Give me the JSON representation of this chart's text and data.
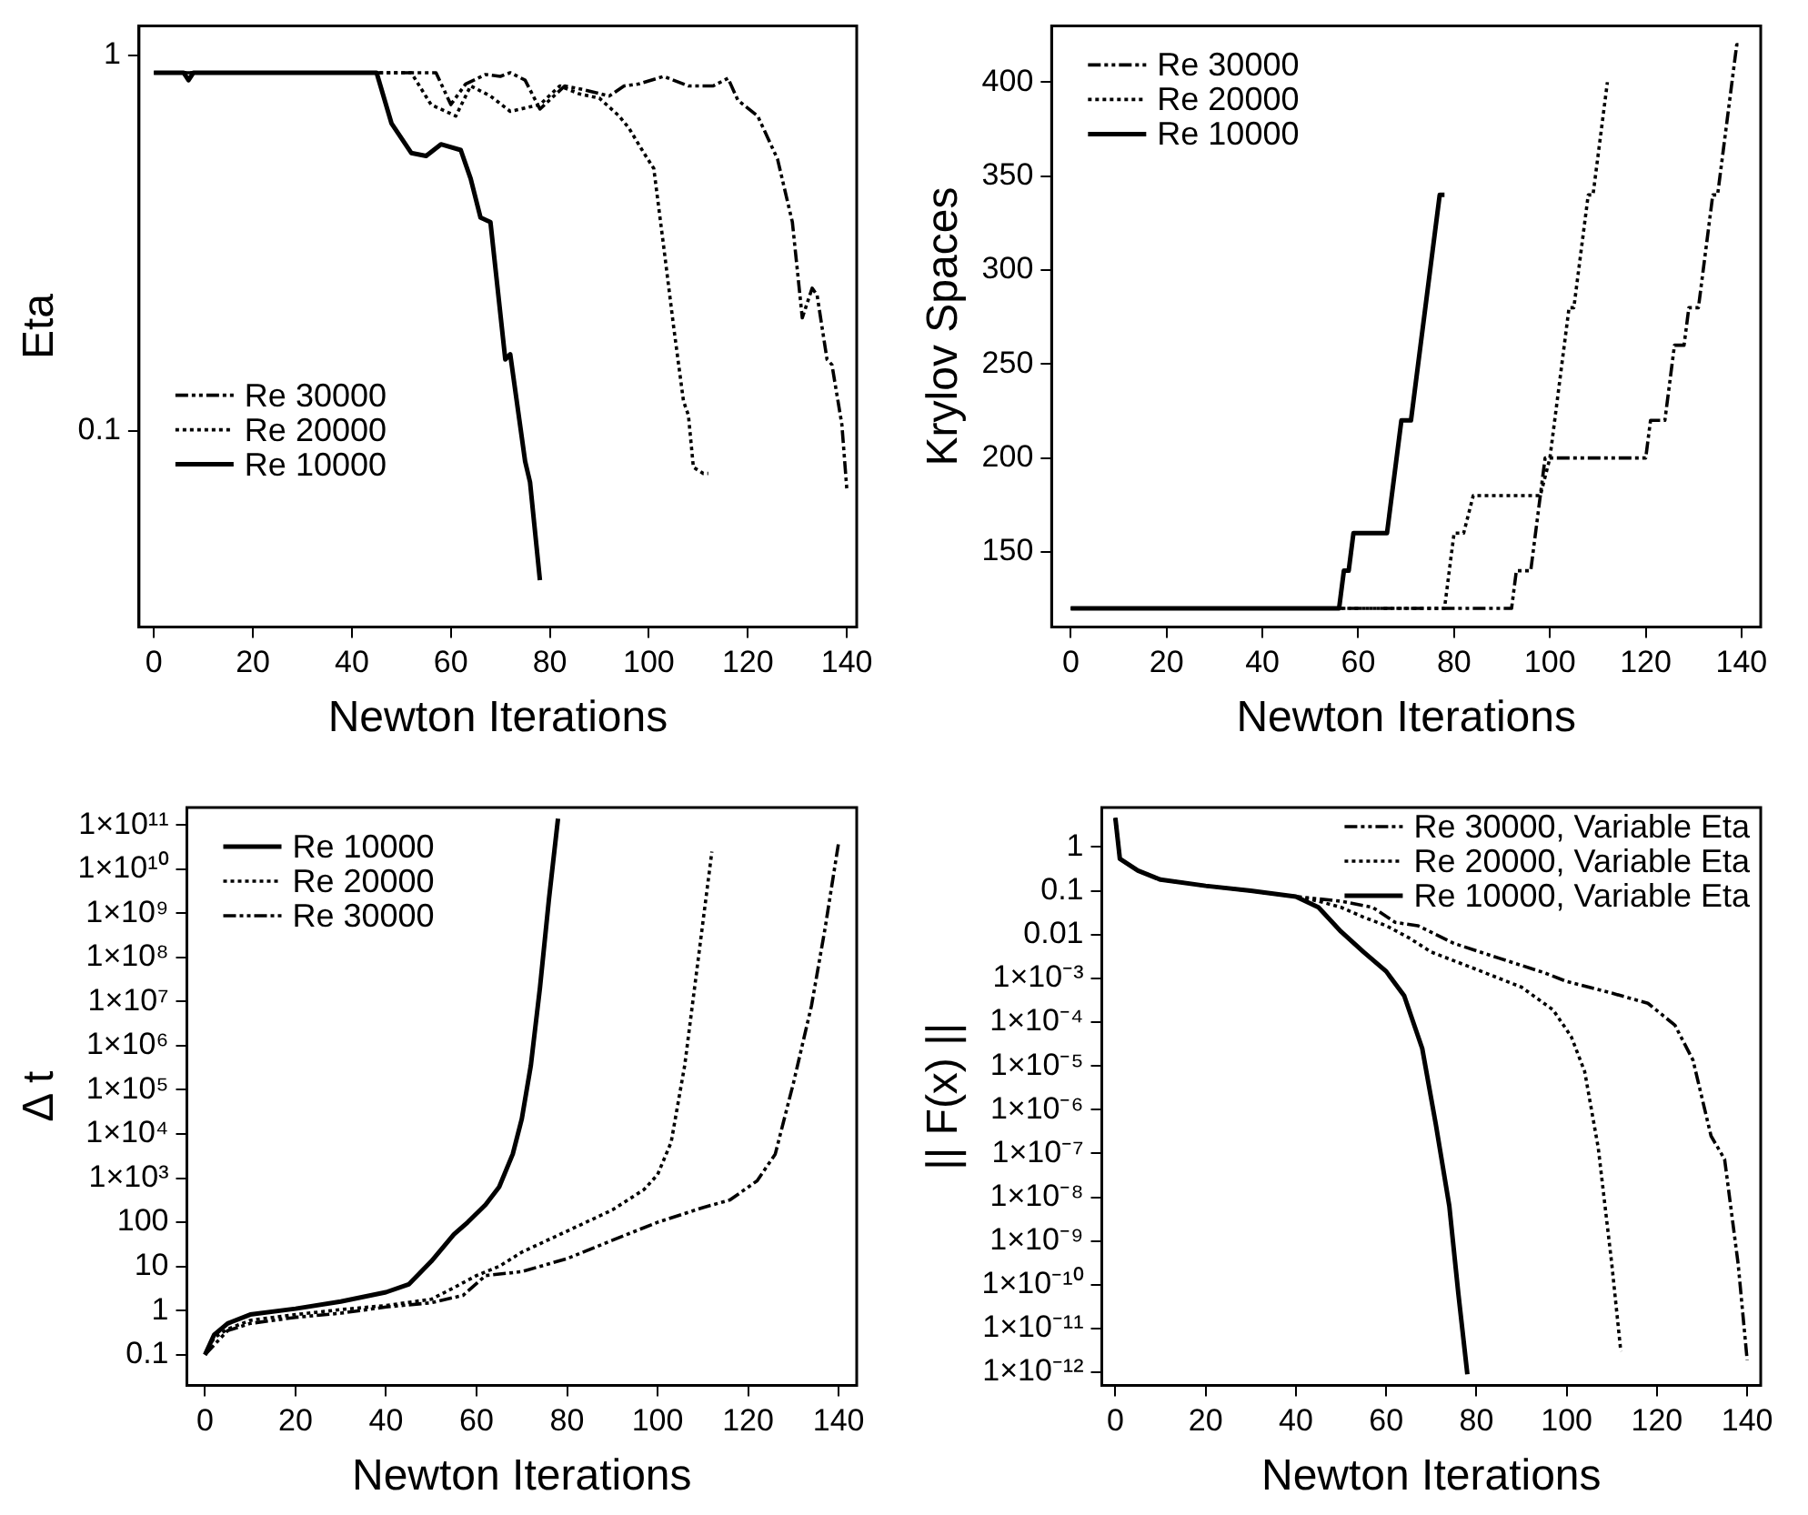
{
  "chart_data": [
    {
      "type": "line",
      "xlabel": "Newton Iterations",
      "ylabel": "Eta",
      "log": "y",
      "legend": "bottom left",
      "xlim": [
        -3,
        142
      ],
      "xticks": [
        0,
        20,
        40,
        60,
        80,
        100,
        120,
        140
      ],
      "ylim": [
        0.03,
        1.2
      ],
      "yticks": [
        0.1,
        1
      ],
      "series": [
        {
          "name": "Re 30000",
          "color": "#000000",
          "line_style": "dashed",
          "x": [
            0,
            57,
            60,
            63,
            67,
            70,
            72,
            75,
            78,
            83,
            87,
            92,
            95,
            98,
            103,
            108,
            113,
            116,
            118,
            122,
            126,
            129,
            131,
            133,
            134,
            136,
            137,
            139,
            140
          ],
          "values": [
            0.9,
            0.9,
            0.74,
            0.84,
            0.89,
            0.88,
            0.9,
            0.86,
            0.72,
            0.83,
            0.81,
            0.78,
            0.83,
            0.84,
            0.88,
            0.83,
            0.83,
            0.87,
            0.76,
            0.69,
            0.53,
            0.36,
            0.2,
            0.24,
            0.23,
            0.155,
            0.15,
            0.104,
            0.07
          ]
        },
        {
          "name": "Re 20000",
          "color": "#000000",
          "line_style": "dotted",
          "x": [
            0,
            52,
            56,
            61,
            64,
            68,
            72,
            78,
            82,
            86,
            90,
            94,
            96,
            99,
            101,
            103,
            105,
            107,
            108,
            109,
            111,
            112
          ],
          "values": [
            0.9,
            0.9,
            0.74,
            0.69,
            0.83,
            0.78,
            0.71,
            0.74,
            0.83,
            0.79,
            0.77,
            0.69,
            0.64,
            0.55,
            0.5,
            0.31,
            0.19,
            0.12,
            0.11,
            0.08,
            0.077,
            0.077
          ]
        },
        {
          "name": "Re 10000",
          "color": "#000000",
          "line_style": "solid",
          "x": [
            0,
            6,
            7,
            8,
            45,
            48,
            52,
            55,
            58,
            62,
            64,
            66,
            68,
            71,
            72,
            75,
            76,
            78
          ],
          "values": [
            0.9,
            0.9,
            0.86,
            0.9,
            0.9,
            0.66,
            0.55,
            0.54,
            0.58,
            0.56,
            0.47,
            0.37,
            0.36,
            0.155,
            0.16,
            0.083,
            0.073,
            0.04
          ]
        }
      ]
    },
    {
      "type": "line",
      "xlabel": "Newton Iterations",
      "ylabel": "Krylov Spaces",
      "legend": "top left",
      "xlim": [
        -4,
        144
      ],
      "xticks": [
        0,
        20,
        40,
        60,
        80,
        100,
        120,
        140
      ],
      "ylim": [
        110,
        430
      ],
      "yticks": [
        150,
        200,
        250,
        300,
        350,
        400
      ],
      "series": [
        {
          "name": "Re 30000",
          "color": "#000000",
          "line_style": "dashed",
          "x": [
            0,
            92,
            93,
            96,
            99,
            120,
            121,
            124,
            126,
            128,
            129,
            131,
            134,
            135,
            138,
            139,
            140
          ],
          "values": [
            120,
            120,
            140,
            140,
            200,
            200,
            220,
            220,
            260,
            260,
            280,
            280,
            340,
            340,
            400,
            420,
            420
          ]
        },
        {
          "name": "Re 20000",
          "color": "#000000",
          "line_style": "dotted",
          "x": [
            0,
            78,
            80,
            82,
            84,
            98,
            100,
            104,
            105,
            108,
            109,
            112
          ],
          "values": [
            120,
            120,
            160,
            160,
            180,
            180,
            200,
            280,
            280,
            340,
            340,
            400
          ]
        },
        {
          "name": "Re 10000",
          "color": "#000000",
          "line_style": "solid",
          "x": [
            0,
            56,
            57,
            58,
            59,
            66,
            69,
            71,
            77,
            78
          ],
          "values": [
            120,
            120,
            140,
            140,
            160,
            160,
            220,
            220,
            340,
            340
          ]
        }
      ]
    },
    {
      "type": "line",
      "xlabel": "Newton Iterations",
      "ylabel": "Δ t",
      "log": "y",
      "legend": "top left",
      "xlim": [
        -4,
        144
      ],
      "xticks": [
        0,
        20,
        40,
        60,
        80,
        100,
        120,
        140
      ],
      "ylim": [
        0.02,
        250000000000
      ],
      "yticks": [
        0.1,
        1,
        10,
        100,
        {
          "value": 1000,
          "label": "1×10³"
        },
        {
          "value": 10000,
          "label": "1×10⁴"
        },
        {
          "value": 100000,
          "label": "1×10⁵"
        },
        {
          "value": 1000000,
          "label": "1×10⁶"
        },
        {
          "value": 10000000,
          "label": "1×10⁷"
        },
        {
          "value": 100000000,
          "label": "1×10⁸"
        },
        {
          "value": 1000000000,
          "label": "1×10⁹"
        },
        {
          "value": 10000000000,
          "label": "1×10¹⁰"
        },
        {
          "value": 100000000000,
          "label": "1×10¹¹"
        }
      ],
      "series": [
        {
          "name": "Re 10000",
          "color": "#000000",
          "line_style": "solid",
          "x": [
            0,
            2,
            5,
            10,
            20,
            30,
            40,
            45,
            50,
            55,
            58,
            62,
            65,
            68,
            70,
            72,
            74,
            76,
            78
          ],
          "values": [
            0.1,
            0.28,
            0.51,
            0.81,
            1.1,
            1.6,
            2.6,
            3.9,
            13,
            53,
            99,
            250,
            630,
            3500,
            22000,
            360000,
            20000000,
            2100000000,
            140000000000
          ]
        },
        {
          "name": "Re 20000",
          "color": "#000000",
          "line_style": "dotted",
          "x": [
            0,
            2,
            5,
            10,
            20,
            30,
            40,
            50,
            55,
            60,
            65,
            70,
            80,
            90,
            97,
            100,
            103,
            106,
            109,
            112
          ],
          "values": [
            0.1,
            0.24,
            0.38,
            0.6,
            0.81,
            1.05,
            1.3,
            1.8,
            3.3,
            6.2,
            10,
            21,
            63,
            190,
            550,
            1200,
            6500,
            360000,
            95000000,
            25000000000
          ]
        },
        {
          "name": "Re 30000",
          "color": "#000000",
          "line_style": "dashed",
          "x": [
            0,
            5,
            10,
            20,
            30,
            40,
            50,
            57,
            62,
            70,
            80,
            90,
            100,
            110,
            116,
            122,
            126,
            130,
            134,
            137,
            140
          ],
          "values": [
            0.1,
            0.35,
            0.51,
            0.7,
            0.87,
            1.2,
            1.5,
            2.2,
            6.2,
            7.6,
            15,
            39,
            100,
            215,
            320,
            870,
            3500,
            140000,
            8000000,
            450000000,
            40000000000
          ]
        }
      ]
    },
    {
      "type": "line",
      "xlabel": "Newton Iterations",
      "ylabel": "|| F(x) ||",
      "log": "y",
      "legend": "top right",
      "xlim": [
        -3,
        143
      ],
      "xticks": [
        0,
        20,
        40,
        60,
        80,
        100,
        120,
        140
      ],
      "ylim": [
        5e-13,
        8
      ],
      "yticks": [
        {
          "value": 1e-12,
          "label": "1×10⁻¹²"
        },
        {
          "value": 1e-11,
          "label": "1×10⁻¹¹"
        },
        {
          "value": 1e-10,
          "label": "1×10⁻¹⁰"
        },
        {
          "value": 1e-09,
          "label": "1×10⁻⁹"
        },
        {
          "value": 1e-08,
          "label": "1×10⁻⁸"
        },
        {
          "value": 1e-07,
          "label": "1×10⁻⁷"
        },
        {
          "value": 1e-06,
          "label": "1×10⁻⁶"
        },
        {
          "value": 1e-05,
          "label": "1×10⁻⁵"
        },
        {
          "value": 0.0001,
          "label": "1×10⁻⁴"
        },
        {
          "value": 0.001,
          "label": "1×10⁻³"
        },
        0.01,
        0.1,
        1
      ],
      "series": [
        {
          "name": "Re 30000, Variable Eta",
          "color": "#000000",
          "line_style": "dashed",
          "x": [
            0,
            1,
            5,
            10,
            20,
            30,
            40,
            50,
            57,
            62,
            67,
            75,
            85,
            95,
            100,
            110,
            118,
            124,
            128,
            132,
            135,
            138,
            140
          ],
          "values": [
            4.6,
            0.54,
            0.29,
            0.18,
            0.13,
            0.1,
            0.074,
            0.058,
            0.042,
            0.019,
            0.016,
            0.0063,
            0.0029,
            0.00135,
            0.00085,
            0.00046,
            0.00027,
            8.5e-05,
            1.35e-05,
            2.5e-07,
            7.4e-08,
            3e-10,
            1.9e-12
          ]
        },
        {
          "name": "Re 20000, Variable Eta",
          "color": "#000000",
          "line_style": "dotted",
          "x": [
            0,
            1,
            5,
            10,
            20,
            30,
            40,
            45,
            50,
            55,
            60,
            65,
            70,
            80,
            90,
            97,
            101,
            104,
            107,
            110,
            112
          ],
          "values": [
            4.6,
            0.54,
            0.29,
            0.18,
            0.13,
            0.1,
            0.074,
            0.058,
            0.042,
            0.025,
            0.016,
            0.0085,
            0.004,
            0.0016,
            0.00063,
            0.00019,
            4.7e-05,
            7.4e-06,
            1.35e-07,
            3e-10,
            3e-12
          ]
        },
        {
          "name": "Re 10000, Variable Eta",
          "color": "#000000",
          "line_style": "solid",
          "x": [
            0,
            1,
            5,
            10,
            20,
            30,
            40,
            45,
            50,
            55,
            60,
            64,
            68,
            71,
            74,
            76,
            78
          ],
          "values": [
            4.6,
            0.54,
            0.29,
            0.18,
            0.13,
            0.1,
            0.074,
            0.042,
            0.0117,
            0.004,
            0.00145,
            0.0004,
            2.5e-05,
            4.7e-07,
            6.3e-09,
            6.3e-11,
            9e-13
          ]
        }
      ]
    }
  ]
}
